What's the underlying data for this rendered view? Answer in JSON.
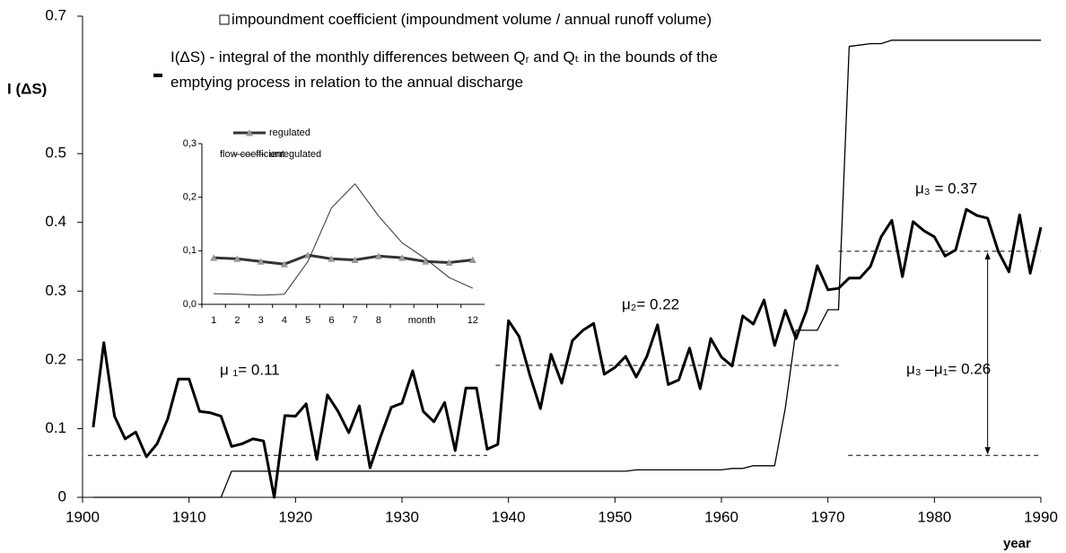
{
  "chart_data": [
    {
      "type": "line",
      "y_label": "I (ΔS)",
      "x_label": "year",
      "x": [
        1901,
        1902,
        1903,
        1904,
        1905,
        1906,
        1907,
        1908,
        1909,
        1910,
        1911,
        1912,
        1913,
        1914,
        1915,
        1916,
        1917,
        1918,
        1919,
        1920,
        1921,
        1922,
        1923,
        1924,
        1925,
        1926,
        1927,
        1928,
        1929,
        1930,
        1931,
        1932,
        1933,
        1934,
        1935,
        1936,
        1937,
        1938,
        1939,
        1940,
        1941,
        1942,
        1943,
        1944,
        1945,
        1946,
        1947,
        1948,
        1949,
        1950,
        1951,
        1952,
        1953,
        1954,
        1955,
        1956,
        1957,
        1958,
        1959,
        1960,
        1961,
        1962,
        1963,
        1964,
        1965,
        1966,
        1967,
        1968,
        1969,
        1970,
        1971,
        1972,
        1973,
        1974,
        1975,
        1976,
        1977,
        1978,
        1979,
        1980,
        1981,
        1982,
        1983,
        1984,
        1985,
        1986,
        1987,
        1988,
        1989,
        1990
      ],
      "series": [
        {
          "name": "impoundment coefficient (impoundment volume / annual runoff volume)",
          "color": "#000000",
          "width": 1.3,
          "marker": "square",
          "values": [
            0,
            0,
            0,
            0,
            0,
            0,
            0,
            0,
            0,
            0,
            0,
            0,
            0,
            0.038,
            0.038,
            0.038,
            0.038,
            0.038,
            0.038,
            0.038,
            0.038,
            0.038,
            0.038,
            0.038,
            0.038,
            0.038,
            0.038,
            0.038,
            0.038,
            0.038,
            0.038,
            0.038,
            0.038,
            0.038,
            0.038,
            0.038,
            0.038,
            0.038,
            0.038,
            0.038,
            0.038,
            0.038,
            0.038,
            0.038,
            0.038,
            0.038,
            0.038,
            0.038,
            0.038,
            0.038,
            0.038,
            0.04,
            0.04,
            0.04,
            0.04,
            0.04,
            0.04,
            0.04,
            0.04,
            0.04,
            0.042,
            0.042,
            0.046,
            0.046,
            0.046,
            0.13,
            0.243,
            0.243,
            0.243,
            0.273,
            0.273,
            0.656,
            0.658,
            0.66,
            0.66,
            0.665,
            0.665,
            0.665,
            0.665,
            0.665,
            0.665,
            0.665,
            0.665,
            0.665,
            0.665,
            0.665,
            0.665,
            0.665,
            0.665,
            0.665
          ]
        },
        {
          "name": "I(ΔS) - integral of the monthly differences between Qᵣ and Qₜ in the bounds of the emptying process in relation to the annual discharge",
          "color": "#000000",
          "width": 3,
          "marker": "dash",
          "values": [
            0.102,
            0.225,
            0.118,
            0.085,
            0.095,
            0.059,
            0.078,
            0.114,
            0.172,
            0.172,
            0.125,
            0.123,
            0.118,
            0.074,
            0.078,
            0.085,
            0.082,
            0,
            0.119,
            0.118,
            0.136,
            0.055,
            0.149,
            0.125,
            0.094,
            0.133,
            0.043,
            0.089,
            0.131,
            0.137,
            0.184,
            0.125,
            0.11,
            0.138,
            0.068,
            0.159,
            0.159,
            0.07,
            0.077,
            0.257,
            0.234,
            0.178,
            0.129,
            0.208,
            0.166,
            0.228,
            0.243,
            0.253,
            0.179,
            0.189,
            0.205,
            0.175,
            0.205,
            0.251,
            0.164,
            0.171,
            0.217,
            0.158,
            0.231,
            0.204,
            0.191,
            0.264,
            0.252,
            0.287,
            0.221,
            0.272,
            0.231,
            0.272,
            0.337,
            0.302,
            0.304,
            0.319,
            0.319,
            0.336,
            0.379,
            0.403,
            0.321,
            0.401,
            0.388,
            0.379,
            0.351,
            0.36,
            0.419,
            0.41,
            0.406,
            0.358,
            0.328,
            0.411,
            0.326,
            0.393
          ]
        }
      ],
      "reference_lines": [
        {
          "x": [
            1900.5,
            1938
          ],
          "y": 0.061
        },
        {
          "x": [
            1938.8,
            1971
          ],
          "y": 0.192
        },
        {
          "x": [
            1971,
            1990
          ],
          "y": 0.358
        },
        {
          "x": [
            1971.9,
            1990
          ],
          "y": 0.061
        }
      ],
      "arrow": {
        "x": 1985,
        "y": [
          0.358,
          0.061
        ]
      },
      "annotations": [
        "μ ₁= 0.11",
        "μ₂= 0.22",
        "μ₃ = 0.37",
        "μ₃ –μ₁= 0.26"
      ],
      "xlim": [
        1900,
        1990
      ],
      "ylim": [
        0,
        0.7
      ],
      "xticks": [
        1900,
        1910,
        1920,
        1930,
        1940,
        1950,
        1960,
        1970,
        1980,
        1990
      ],
      "yticks": [
        0,
        0.1,
        0.2,
        0.3,
        0.4,
        0.5,
        0.7
      ]
    },
    {
      "type": "line",
      "title": "flow coefficient",
      "x_label": "month",
      "categories": [
        "1",
        "2",
        "3",
        "4",
        "5",
        "6",
        "7",
        "8",
        null,
        null,
        null,
        "12"
      ],
      "series": [
        {
          "name": "regulated",
          "color": "#333333",
          "width": 3,
          "marker": "triangle",
          "marker_color": "#999999",
          "values": [
            0.087,
            0.085,
            0.08,
            0.075,
            0.092,
            0.085,
            0.083,
            0.09,
            0.087,
            0.08,
            0.078,
            0.083
          ]
        },
        {
          "name": "unregulated",
          "color": "#333333",
          "width": 1,
          "values": [
            0.02,
            0.019,
            0.017,
            0.019,
            0.08,
            0.18,
            0.225,
            0.165,
            0.115,
            0.085,
            0.05,
            0.03
          ]
        }
      ],
      "ylim": [
        0,
        0.3
      ],
      "yticks": [
        {
          "value": 0,
          "label": "0,0"
        },
        {
          "value": 0.1,
          "label": "0,1"
        },
        {
          "value": 0.2,
          "label": "0,2"
        },
        {
          "value": 0.3,
          "label": "0,3"
        }
      ]
    }
  ]
}
